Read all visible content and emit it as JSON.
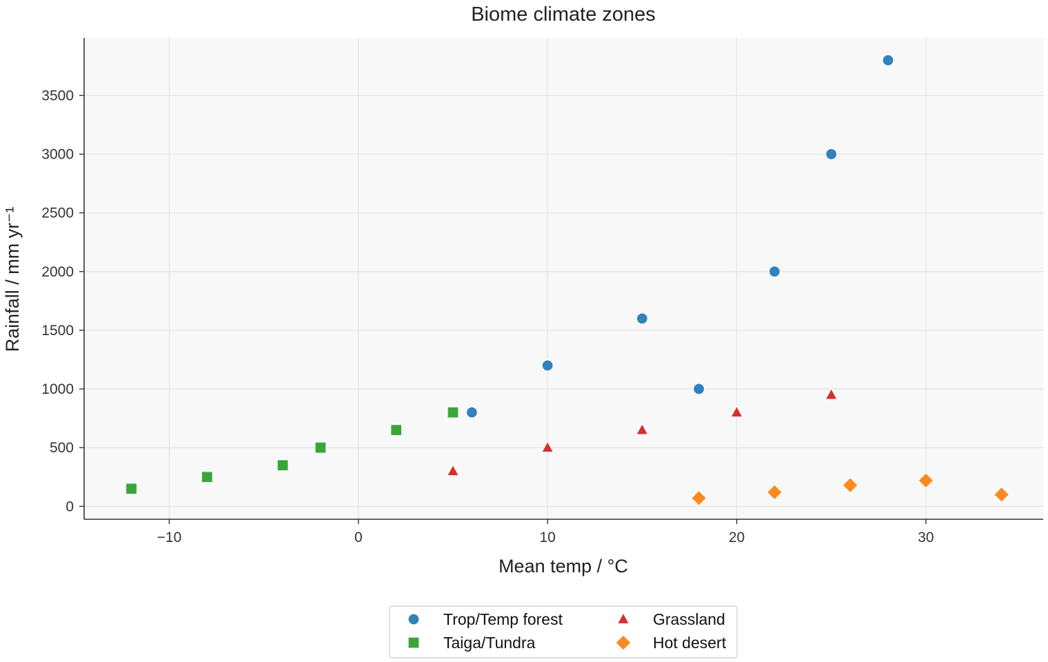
{
  "chart_data": {
    "type": "scatter",
    "title": "Biome climate zones",
    "xlabel": "Mean temp / °C",
    "ylabel": "Rainfall / mm yr⁻¹",
    "xlim": [
      -14.5,
      36.2
    ],
    "ylim": [
      -110,
      3990
    ],
    "xticks": [
      -10,
      0,
      10,
      20,
      30
    ],
    "xtick_labels": [
      "−10",
      "0",
      "10",
      "20",
      "30"
    ],
    "yticks": [
      0,
      500,
      1000,
      1500,
      2000,
      2500,
      3000,
      3500
    ],
    "ytick_labels": [
      "0",
      "500",
      "1000",
      "1500",
      "2000",
      "2500",
      "3000",
      "3500"
    ],
    "grid": true,
    "legend_position": "bottom-center",
    "series": [
      {
        "name": "Trop/Temp forest",
        "marker": "circle",
        "color": "#3182bd",
        "points": [
          [
            6,
            800
          ],
          [
            10,
            1200
          ],
          [
            15,
            1600
          ],
          [
            18,
            1000
          ],
          [
            22,
            2000
          ],
          [
            25,
            3000
          ],
          [
            28,
            3800
          ]
        ]
      },
      {
        "name": "Taiga/Tundra",
        "marker": "square",
        "color": "#3aa63a",
        "points": [
          [
            -12,
            150
          ],
          [
            -8,
            250
          ],
          [
            -4,
            350
          ],
          [
            -2,
            500
          ],
          [
            2,
            650
          ],
          [
            5,
            800
          ]
        ]
      },
      {
        "name": "Grassland",
        "marker": "triangle",
        "color": "#d62f2f",
        "points": [
          [
            5,
            300
          ],
          [
            10,
            500
          ],
          [
            15,
            650
          ],
          [
            20,
            800
          ],
          [
            25,
            950
          ]
        ]
      },
      {
        "name": "Hot desert",
        "marker": "diamond",
        "color": "#fd8a21",
        "points": [
          [
            18,
            70
          ],
          [
            22,
            120
          ],
          [
            26,
            180
          ],
          [
            30,
            220
          ],
          [
            34,
            100
          ]
        ]
      }
    ]
  },
  "colors": {
    "plot_background": "#f8f8f8",
    "grid": "#e3e3e3",
    "axis": "#333333"
  }
}
